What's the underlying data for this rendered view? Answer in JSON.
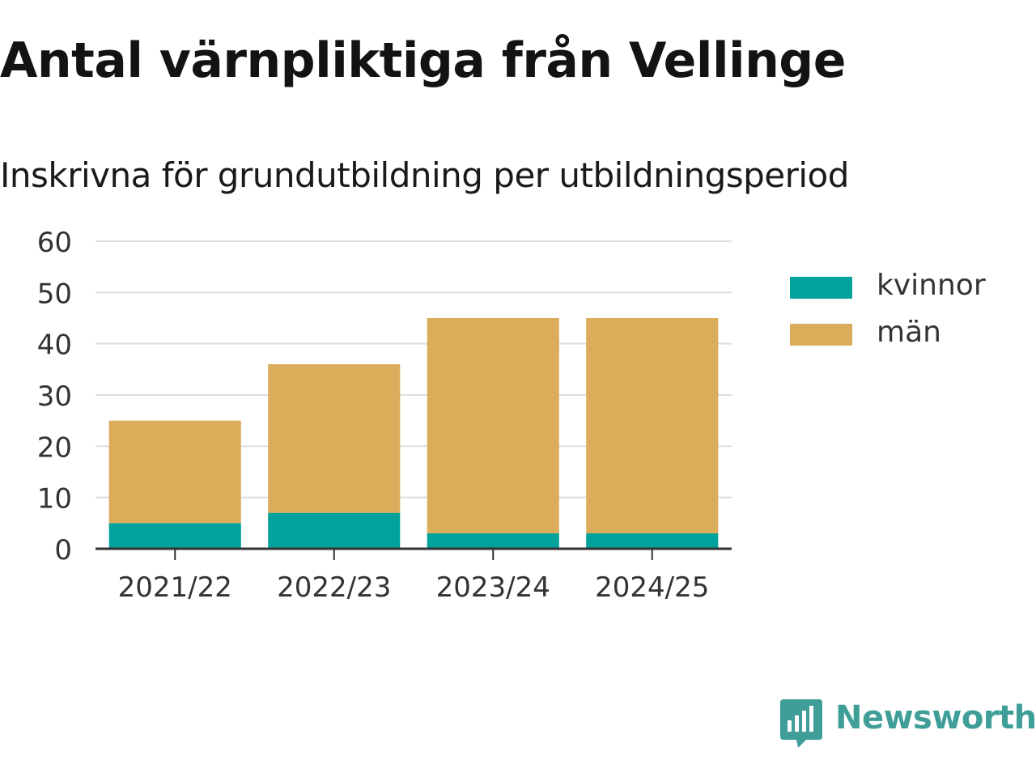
{
  "title": "Antal värnpliktiga från Vellinge",
  "subtitle": "Inskrivna för grundutbildning per utbildningsperiod",
  "colors": {
    "kvinnor": "#00a29b",
    "man": "#dbad5b",
    "grid": "#dddddd",
    "axis": "#333333",
    "brand": "#3f9e98"
  },
  "legend": [
    {
      "label": "kvinnor",
      "color": "#00a29b"
    },
    {
      "label": "män",
      "color": "#dbad5b"
    }
  ],
  "brand": {
    "name": "Newsworthy",
    "icon": "newsworthy-logo-icon"
  },
  "chart_data": {
    "type": "bar",
    "stacked": true,
    "categories": [
      "2021/22",
      "2022/23",
      "2023/24",
      "2024/25"
    ],
    "series": [
      {
        "name": "kvinnor",
        "values": [
          5,
          7,
          3,
          3
        ]
      },
      {
        "name": "män",
        "values": [
          20,
          29,
          42,
          42
        ]
      }
    ],
    "yticks": [
      "0",
      "10",
      "20",
      "30",
      "40",
      "50",
      "60"
    ],
    "ylim": [
      0,
      60
    ],
    "grid": true,
    "legend_position": "right"
  }
}
